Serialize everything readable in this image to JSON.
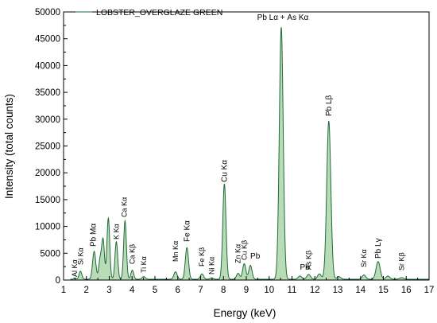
{
  "chart_data": {
    "type": "area",
    "title": "",
    "xlabel": "Energy (keV)",
    "ylabel": "Intensity (total counts)",
    "xlim": [
      1,
      17
    ],
    "ylim": [
      0,
      50000
    ],
    "x_ticks": [
      "1",
      "2",
      "3",
      "4",
      "5",
      "6",
      "7",
      "8",
      "9",
      "10",
      "11",
      "12",
      "13",
      "14",
      "15",
      "16",
      "17"
    ],
    "y_ticks": [
      "0",
      "5000",
      "10000",
      "15000",
      "20000",
      "25000",
      "30000",
      "35000",
      "40000",
      "45000",
      "50000"
    ],
    "grid": false,
    "legend_position": "top-left",
    "fill_color": "#b9dcb6",
    "line_color": "#1e6b3b",
    "series": [
      {
        "name": "LOBSTER_OVERGLAZE GREEN",
        "baseline": 150,
        "peaks": [
          {
            "x": 1.49,
            "y": 220,
            "w": 0.05
          },
          {
            "x": 1.74,
            "y": 1500,
            "w": 0.06
          },
          {
            "x": 2.34,
            "y": 5200,
            "w": 0.07
          },
          {
            "x": 2.6,
            "y": 3600,
            "w": 0.06
          },
          {
            "x": 2.73,
            "y": 7300,
            "w": 0.06
          },
          {
            "x": 2.96,
            "y": 11400,
            "w": 0.06
          },
          {
            "x": 3.31,
            "y": 7000,
            "w": 0.06
          },
          {
            "x": 3.69,
            "y": 10900,
            "w": 0.06
          },
          {
            "x": 4.01,
            "y": 1700,
            "w": 0.06
          },
          {
            "x": 4.51,
            "y": 500,
            "w": 0.07
          },
          {
            "x": 5.9,
            "y": 1400,
            "w": 0.07
          },
          {
            "x": 6.4,
            "y": 5900,
            "w": 0.07
          },
          {
            "x": 7.06,
            "y": 1000,
            "w": 0.07
          },
          {
            "x": 7.48,
            "y": 250,
            "w": 0.07
          },
          {
            "x": 8.04,
            "y": 17800,
            "w": 0.07
          },
          {
            "x": 8.64,
            "y": 1100,
            "w": 0.07
          },
          {
            "x": 8.91,
            "y": 2900,
            "w": 0.07
          },
          {
            "x": 9.18,
            "y": 2600,
            "w": 0.07
          },
          {
            "x": 10.53,
            "y": 47000,
            "w": 0.085
          },
          {
            "x": 11.35,
            "y": 600,
            "w": 0.08
          },
          {
            "x": 11.73,
            "y": 900,
            "w": 0.08
          },
          {
            "x": 12.2,
            "y": 1000,
            "w": 0.08
          },
          {
            "x": 12.61,
            "y": 29500,
            "w": 0.09
          },
          {
            "x": 13.05,
            "y": 500,
            "w": 0.08
          },
          {
            "x": 14.15,
            "y": 800,
            "w": 0.08
          },
          {
            "x": 14.77,
            "y": 3300,
            "w": 0.09
          },
          {
            "x": 15.2,
            "y": 600,
            "w": 0.08
          },
          {
            "x": 15.8,
            "y": 300,
            "w": 0.09
          }
        ]
      }
    ],
    "annotations": [
      {
        "text": "Al Kα",
        "x": 1.49
      },
      {
        "text": "Si Kα",
        "x": 1.74
      },
      {
        "text": "Pb Mα",
        "x": 2.34
      },
      {
        "text": "K Kα",
        "x": 3.31
      },
      {
        "text": "Ca Kα",
        "x": 3.69
      },
      {
        "text": "Ca Kβ",
        "x": 4.01
      },
      {
        "text": "Ti Kα",
        "x": 4.51
      },
      {
        "text": "Mn Kα",
        "x": 5.9
      },
      {
        "text": "Fe Kα",
        "x": 6.4
      },
      {
        "text": "Fe Kβ",
        "x": 7.06
      },
      {
        "text": "Ni Kα",
        "x": 7.48
      },
      {
        "text": "Cu Kα",
        "x": 8.04
      },
      {
        "text": "Zn Kα",
        "x": 8.64
      },
      {
        "text": "Cu Kβ",
        "x": 8.91
      },
      {
        "text": "Pb",
        "x": 9.18
      },
      {
        "text": "Pb Lα + As Kα",
        "x": 10.53
      },
      {
        "text": "Pb",
        "x": 11.35
      },
      {
        "text": "As Kβ",
        "x": 11.73
      },
      {
        "text": "Pb Lβ",
        "x": 12.61
      },
      {
        "text": "Sr Kα",
        "x": 14.15
      },
      {
        "text": "Pb Lγ",
        "x": 14.77
      },
      {
        "text": "Sr Kβ",
        "x": 15.8
      }
    ]
  }
}
